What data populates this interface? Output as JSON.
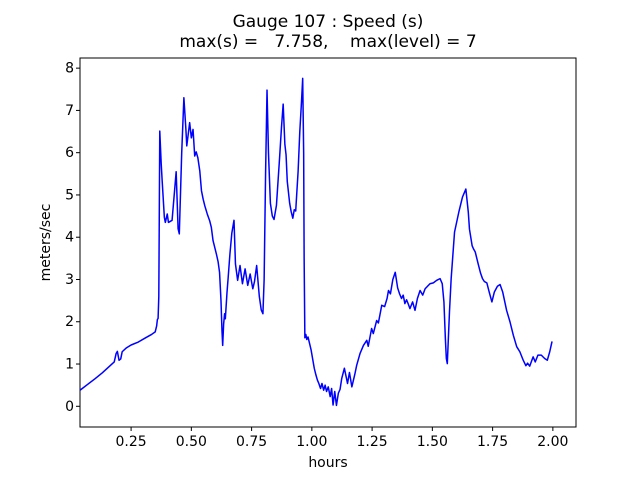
{
  "chart_data": {
    "type": "line",
    "title": "Gauge 107 : Speed (s)",
    "subtitle": "max(s) =   7.758,    max(level) = 7",
    "xlabel": "hours",
    "ylabel": "meters/sec",
    "max_s": 7.758,
    "max_level": 7,
    "grid": false,
    "legend": "none",
    "line_color": "#0000ff",
    "axis_color": "#000000",
    "background_color": "#ffffff",
    "xlim": [
      0.038,
      2.096
    ],
    "ylim": [
      -0.49,
      8.24
    ],
    "xticks": [
      {
        "value": 0.25,
        "label": "0.25"
      },
      {
        "value": 0.5,
        "label": "0.50"
      },
      {
        "value": 0.75,
        "label": "0.75"
      },
      {
        "value": 1.0,
        "label": "1.00"
      },
      {
        "value": 1.25,
        "label": "1.25"
      },
      {
        "value": 1.5,
        "label": "1.50"
      },
      {
        "value": 1.75,
        "label": "1.75"
      },
      {
        "value": 2.0,
        "label": "2.00"
      }
    ],
    "yticks": [
      {
        "value": 0,
        "label": "0"
      },
      {
        "value": 1,
        "label": "1"
      },
      {
        "value": 2,
        "label": "2"
      },
      {
        "value": 3,
        "label": "3"
      },
      {
        "value": 4,
        "label": "4"
      },
      {
        "value": 5,
        "label": "5"
      },
      {
        "value": 6,
        "label": "6"
      },
      {
        "value": 7,
        "label": "7"
      },
      {
        "value": 8,
        "label": "8"
      }
    ],
    "series": [
      {
        "name": "Speed (s)",
        "points": [
          [
            0.038,
            0.38
          ],
          [
            0.07,
            0.52
          ],
          [
            0.1,
            0.65
          ],
          [
            0.13,
            0.79
          ],
          [
            0.155,
            0.92
          ],
          [
            0.18,
            1.05
          ],
          [
            0.188,
            1.25
          ],
          [
            0.193,
            1.3
          ],
          [
            0.2,
            1.09
          ],
          [
            0.207,
            1.12
          ],
          [
            0.213,
            1.29
          ],
          [
            0.23,
            1.38
          ],
          [
            0.25,
            1.45
          ],
          [
            0.28,
            1.52
          ],
          [
            0.31,
            1.62
          ],
          [
            0.335,
            1.7
          ],
          [
            0.35,
            1.76
          ],
          [
            0.356,
            1.9
          ],
          [
            0.359,
            2.05
          ],
          [
            0.362,
            2.08
          ],
          [
            0.365,
            2.6
          ],
          [
            0.369,
            6.51
          ],
          [
            0.375,
            5.73
          ],
          [
            0.379,
            5.33
          ],
          [
            0.388,
            4.47
          ],
          [
            0.392,
            4.35
          ],
          [
            0.4,
            4.55
          ],
          [
            0.405,
            4.35
          ],
          [
            0.42,
            4.4
          ],
          [
            0.437,
            5.55
          ],
          [
            0.445,
            4.2
          ],
          [
            0.45,
            4.08
          ],
          [
            0.46,
            6.0
          ],
          [
            0.469,
            7.3
          ],
          [
            0.477,
            6.59
          ],
          [
            0.481,
            6.16
          ],
          [
            0.493,
            6.71
          ],
          [
            0.5,
            6.35
          ],
          [
            0.507,
            6.55
          ],
          [
            0.514,
            5.92
          ],
          [
            0.52,
            6.02
          ],
          [
            0.527,
            5.88
          ],
          [
            0.535,
            5.57
          ],
          [
            0.542,
            5.1
          ],
          [
            0.549,
            4.9
          ],
          [
            0.556,
            4.74
          ],
          [
            0.566,
            4.55
          ],
          [
            0.576,
            4.39
          ],
          [
            0.583,
            4.23
          ],
          [
            0.59,
            3.92
          ],
          [
            0.597,
            3.76
          ],
          [
            0.604,
            3.6
          ],
          [
            0.611,
            3.42
          ],
          [
            0.617,
            3.17
          ],
          [
            0.623,
            2.5
          ],
          [
            0.627,
            1.8
          ],
          [
            0.63,
            1.44
          ],
          [
            0.634,
            1.95
          ],
          [
            0.638,
            2.19
          ],
          [
            0.641,
            2.07
          ],
          [
            0.648,
            2.7
          ],
          [
            0.653,
            3.06
          ],
          [
            0.66,
            3.6
          ],
          [
            0.668,
            4.1
          ],
          [
            0.677,
            4.4
          ],
          [
            0.683,
            3.37
          ],
          [
            0.692,
            2.98
          ],
          [
            0.702,
            3.33
          ],
          [
            0.712,
            2.9
          ],
          [
            0.723,
            3.25
          ],
          [
            0.734,
            2.86
          ],
          [
            0.744,
            3.13
          ],
          [
            0.755,
            2.78
          ],
          [
            0.762,
            2.95
          ],
          [
            0.771,
            3.33
          ],
          [
            0.782,
            2.6
          ],
          [
            0.79,
            2.28
          ],
          [
            0.797,
            2.19
          ],
          [
            0.802,
            3.0
          ],
          [
            0.808,
            5.5
          ],
          [
            0.814,
            7.48
          ],
          [
            0.82,
            6.0
          ],
          [
            0.828,
            4.8
          ],
          [
            0.836,
            4.5
          ],
          [
            0.843,
            4.42
          ],
          [
            0.853,
            4.75
          ],
          [
            0.866,
            5.87
          ],
          [
            0.874,
            6.6
          ],
          [
            0.881,
            7.15
          ],
          [
            0.888,
            6.2
          ],
          [
            0.893,
            5.95
          ],
          [
            0.898,
            5.32
          ],
          [
            0.908,
            4.8
          ],
          [
            0.914,
            4.61
          ],
          [
            0.921,
            4.45
          ],
          [
            0.927,
            4.65
          ],
          [
            0.933,
            4.62
          ],
          [
            0.943,
            5.56
          ],
          [
            0.95,
            6.5
          ],
          [
            0.957,
            7.2
          ],
          [
            0.962,
            7.758
          ],
          [
            0.966,
            6.0
          ],
          [
            0.968,
            3.5
          ],
          [
            0.971,
            1.62
          ],
          [
            0.975,
            1.7
          ],
          [
            0.979,
            1.58
          ],
          [
            0.984,
            1.64
          ],
          [
            0.99,
            1.5
          ],
          [
            0.997,
            1.33
          ],
          [
            1.003,
            1.13
          ],
          [
            1.01,
            0.9
          ],
          [
            1.017,
            0.74
          ],
          [
            1.023,
            0.62
          ],
          [
            1.029,
            0.54
          ],
          [
            1.036,
            0.42
          ],
          [
            1.042,
            0.54
          ],
          [
            1.049,
            0.38
          ],
          [
            1.055,
            0.5
          ],
          [
            1.061,
            0.35
          ],
          [
            1.068,
            0.46
          ],
          [
            1.076,
            0.23
          ],
          [
            1.082,
            0.42
          ],
          [
            1.088,
            0.03
          ],
          [
            1.095,
            0.35
          ],
          [
            1.102,
            0.02
          ],
          [
            1.11,
            0.31
          ],
          [
            1.117,
            0.4
          ],
          [
            1.124,
            0.66
          ],
          [
            1.135,
            0.9
          ],
          [
            1.148,
            0.54
          ],
          [
            1.156,
            0.8
          ],
          [
            1.166,
            0.46
          ],
          [
            1.178,
            0.75
          ],
          [
            1.186,
            0.97
          ],
          [
            1.2,
            1.25
          ],
          [
            1.214,
            1.44
          ],
          [
            1.228,
            1.56
          ],
          [
            1.234,
            1.42
          ],
          [
            1.248,
            1.84
          ],
          [
            1.255,
            1.72
          ],
          [
            1.269,
            2.03
          ],
          [
            1.276,
            1.97
          ],
          [
            1.29,
            2.39
          ],
          [
            1.302,
            2.36
          ],
          [
            1.312,
            2.55
          ],
          [
            1.318,
            2.74
          ],
          [
            1.326,
            2.66
          ],
          [
            1.336,
            3.0
          ],
          [
            1.346,
            3.17
          ],
          [
            1.356,
            2.8
          ],
          [
            1.364,
            2.66
          ],
          [
            1.372,
            2.55
          ],
          [
            1.379,
            2.63
          ],
          [
            1.386,
            2.43
          ],
          [
            1.393,
            2.52
          ],
          [
            1.4,
            2.42
          ],
          [
            1.407,
            2.31
          ],
          [
            1.418,
            2.47
          ],
          [
            1.428,
            2.27
          ],
          [
            1.438,
            2.55
          ],
          [
            1.449,
            2.74
          ],
          [
            1.46,
            2.63
          ],
          [
            1.47,
            2.78
          ],
          [
            1.48,
            2.84
          ],
          [
            1.49,
            2.9
          ],
          [
            1.504,
            2.92
          ],
          [
            1.518,
            2.98
          ],
          [
            1.532,
            3.02
          ],
          [
            1.541,
            2.9
          ],
          [
            1.548,
            2.47
          ],
          [
            1.554,
            1.6
          ],
          [
            1.558,
            1.13
          ],
          [
            1.562,
            1.01
          ],
          [
            1.571,
            2.23
          ],
          [
            1.578,
            3.02
          ],
          [
            1.592,
            4.12
          ],
          [
            1.61,
            4.6
          ],
          [
            1.625,
            4.95
          ],
          [
            1.639,
            5.14
          ],
          [
            1.649,
            4.6
          ],
          [
            1.654,
            4.19
          ],
          [
            1.665,
            3.8
          ],
          [
            1.671,
            3.72
          ],
          [
            1.678,
            3.65
          ],
          [
            1.69,
            3.37
          ],
          [
            1.7,
            3.15
          ],
          [
            1.708,
            3.02
          ],
          [
            1.716,
            2.95
          ],
          [
            1.726,
            2.92
          ],
          [
            1.736,
            2.7
          ],
          [
            1.747,
            2.47
          ],
          [
            1.757,
            2.7
          ],
          [
            1.77,
            2.84
          ],
          [
            1.781,
            2.88
          ],
          [
            1.792,
            2.7
          ],
          [
            1.808,
            2.27
          ],
          [
            1.822,
            2.0
          ],
          [
            1.836,
            1.68
          ],
          [
            1.85,
            1.41
          ],
          [
            1.863,
            1.29
          ],
          [
            1.877,
            1.09
          ],
          [
            1.888,
            0.96
          ],
          [
            1.895,
            1.02
          ],
          [
            1.904,
            0.95
          ],
          [
            1.918,
            1.17
          ],
          [
            1.927,
            1.05
          ],
          [
            1.938,
            1.21
          ],
          [
            1.952,
            1.21
          ],
          [
            1.966,
            1.13
          ],
          [
            1.977,
            1.09
          ],
          [
            1.987,
            1.29
          ],
          [
            1.996,
            1.52
          ]
        ]
      }
    ]
  }
}
